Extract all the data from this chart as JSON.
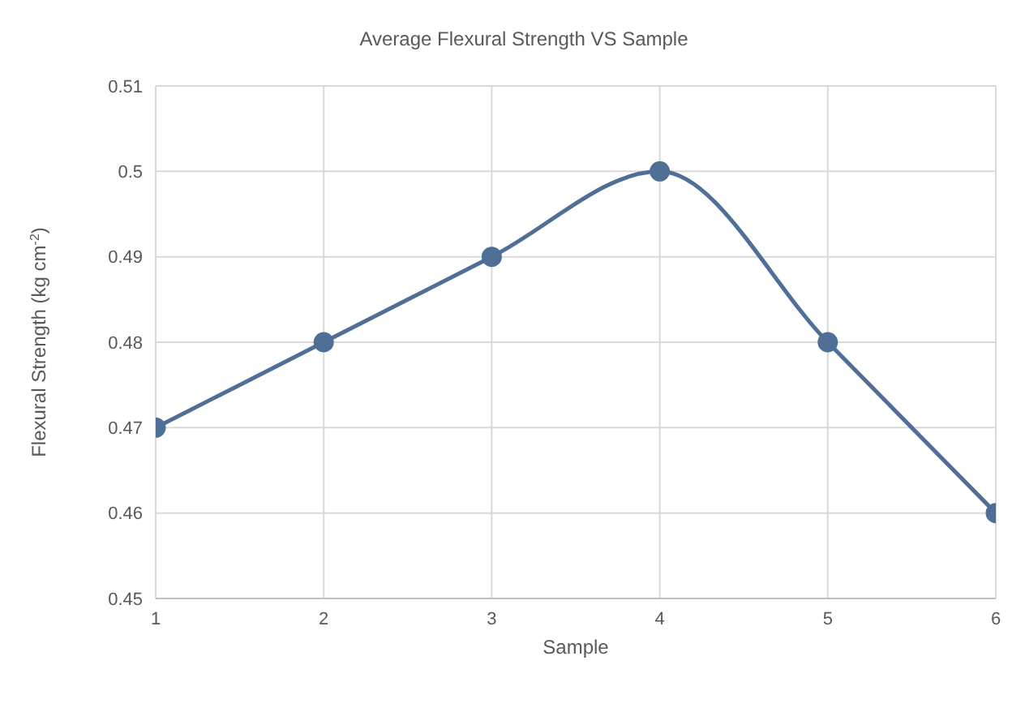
{
  "chart_data": {
    "type": "line",
    "title": "Average Flexural Strength VS Sample",
    "xlabel": "Sample",
    "ylabel": "Flexural Strength (kg cm$^{-2}$)",
    "x": [
      1,
      2,
      3,
      4,
      5,
      6
    ],
    "series": [
      {
        "color": "#4f6f96",
        "values": [
          0.47,
          0.48,
          0.49,
          0.5,
          0.48,
          0.46
        ]
      }
    ],
    "xlim": [
      1,
      6
    ],
    "xticks": [
      1,
      2,
      3,
      4,
      5,
      6
    ],
    "ylim": [
      0.45,
      0.51
    ],
    "yticks": [
      0.45,
      0.46,
      0.47,
      0.48,
      0.49,
      0.5,
      0.51
    ],
    "grid": true,
    "marker": "circle",
    "line_style": "solid"
  }
}
